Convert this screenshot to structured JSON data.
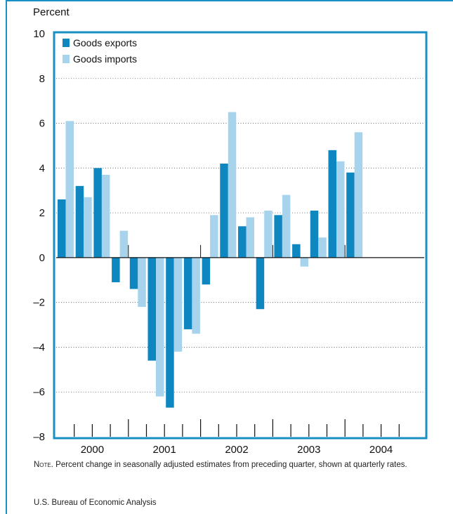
{
  "colors": {
    "frame": "#1a8fc4",
    "exports": "#0e86c0",
    "imports": "#a7d4ec",
    "gridline": "#555555"
  },
  "chart_data": {
    "type": "bar",
    "ylabel": "Percent",
    "ylim": [
      -8,
      10
    ],
    "yticks": [
      "10",
      "8",
      "6",
      "4",
      "2",
      "0",
      "–2",
      "–4",
      "–6",
      "–8"
    ],
    "ytick_values": [
      10,
      8,
      6,
      4,
      2,
      0,
      -2,
      -4,
      -6,
      -8
    ],
    "grid": "horizontal dotted",
    "legend_position": "top-left",
    "year_labels": [
      "2000",
      "2001",
      "2002",
      "2003",
      "2004"
    ],
    "categories": [
      "2000 Q1",
      "2000 Q2",
      "2000 Q3",
      "2000 Q4",
      "2001 Q1",
      "2001 Q2",
      "2001 Q3",
      "2001 Q4",
      "2002 Q1",
      "2002 Q2",
      "2002 Q3",
      "2002 Q4",
      "2003 Q1",
      "2003 Q2",
      "2003 Q3",
      "2003 Q4",
      "2004 Q1",
      "2004 Q2",
      "2004 Q3",
      "2004 Q4"
    ],
    "series": [
      {
        "name": "Goods exports",
        "values": [
          2.6,
          3.2,
          4.0,
          -1.1,
          -1.4,
          -4.6,
          -6.7,
          -3.2,
          -1.2,
          4.2,
          1.4,
          -2.3,
          1.9,
          0.6,
          2.1,
          4.8,
          3.8,
          null,
          null,
          null
        ]
      },
      {
        "name": "Goods imports",
        "values": [
          6.1,
          2.7,
          3.7,
          1.2,
          -2.2,
          -6.2,
          -4.2,
          -3.4,
          1.9,
          6.5,
          1.8,
          2.1,
          2.8,
          -0.4,
          0.9,
          4.3,
          5.6,
          null,
          null,
          null
        ]
      }
    ]
  },
  "note": {
    "head": "Note.",
    "text": " Percent change in seasonally adjusted estimates from preceding quarter, shown at quarterly rates."
  },
  "source": "U.S. Bureau of Economic Analysis"
}
